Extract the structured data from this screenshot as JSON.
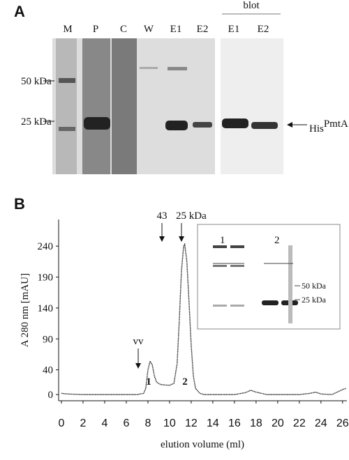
{
  "panel_a": {
    "letter": "A",
    "lanes": [
      "M",
      "P",
      "C",
      "W",
      "E1",
      "E2",
      "E1",
      "E2"
    ],
    "blot_label": "blot",
    "markers": [
      "50 kDa",
      "25 kDa"
    ],
    "protein_label": "His",
    "protein_superscript": "PmtA"
  },
  "chart_data": {
    "type": "line",
    "panel_letter": "B",
    "x_label": "elution volume (ml)",
    "y_label": "A 280 nm [mAU]",
    "xlim": [
      0,
      26.4
    ],
    "ylim": [
      -10,
      283
    ],
    "xticks": [
      0,
      2,
      4,
      6,
      8,
      10,
      12,
      14,
      16,
      18,
      20,
      22,
      24,
      26
    ],
    "yticks": [
      0,
      40,
      90,
      140,
      190,
      240
    ],
    "series": [
      {
        "name": "A280",
        "color": "#222222",
        "x": [
          0,
          0.5,
          2,
          4,
          6,
          7,
          7.6,
          7.8,
          8.0,
          8.2,
          8.4,
          8.6,
          8.8,
          9.2,
          10,
          10.4,
          10.7,
          10.9,
          11.1,
          11.3,
          11.4,
          11.6,
          11.8,
          12.0,
          12.2,
          12.4,
          12.8,
          13.2,
          14,
          16,
          17,
          17.5,
          18,
          19,
          22,
          23,
          23.5,
          24,
          25,
          26,
          26.3
        ],
        "values": [
          2,
          1,
          0,
          0,
          0,
          0,
          2,
          10,
          40,
          54,
          48,
          30,
          20,
          16,
          15,
          18,
          50,
          120,
          200,
          240,
          243,
          215,
          150,
          80,
          30,
          10,
          2,
          0,
          0,
          0,
          3,
          7,
          4,
          0,
          0,
          2,
          4,
          1,
          0,
          8,
          10
        ]
      }
    ],
    "annotations": [
      "vv",
      "43",
      "25 kDa",
      "1",
      "2"
    ],
    "inset": {
      "lanes": [
        "1",
        "2"
      ],
      "markers": [
        "50 kDa",
        "25 kDa"
      ]
    }
  }
}
